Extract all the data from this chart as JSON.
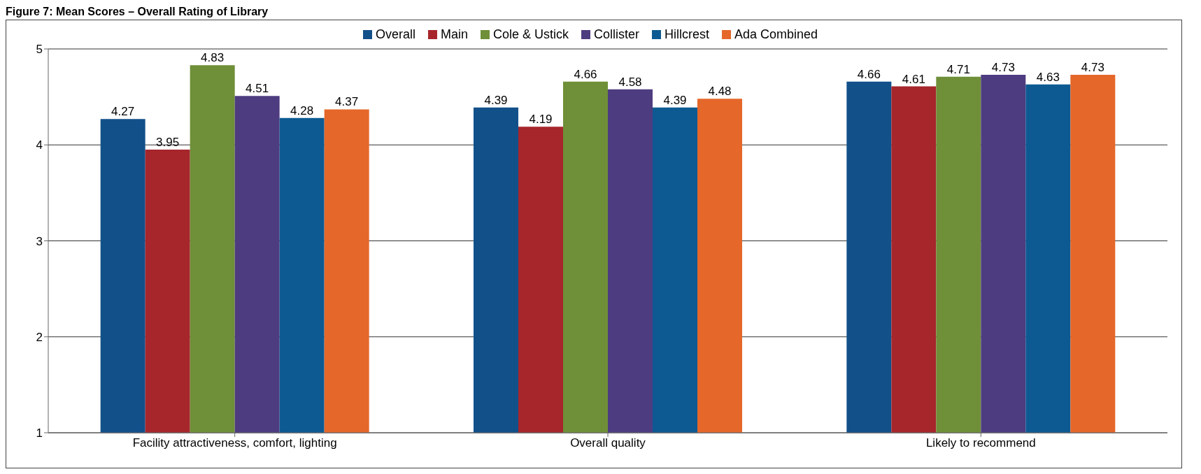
{
  "chart_data": {
    "type": "bar",
    "title": "Figure 7: Mean Scores – Overall Rating of Library",
    "categories": [
      "Facility attractiveness, comfort, lighting",
      "Overall quality",
      "Likely to recommend"
    ],
    "series": [
      {
        "name": "Overall",
        "color": "#12508a",
        "values": [
          4.27,
          4.39,
          4.66
        ]
      },
      {
        "name": "Main",
        "color": "#a6262c",
        "values": [
          3.95,
          4.19,
          4.61
        ]
      },
      {
        "name": "Cole & Ustick",
        "color": "#6f8f38",
        "values": [
          4.83,
          4.66,
          4.71
        ]
      },
      {
        "name": "Collister",
        "color": "#4e3c80",
        "values": [
          4.51,
          4.58,
          4.73
        ]
      },
      {
        "name": "Hillcrest",
        "color": "#0d5a92",
        "values": [
          4.28,
          4.39,
          4.63
        ]
      },
      {
        "name": "Ada Combined",
        "color": "#e5672a",
        "values": [
          4.37,
          4.48,
          4.73
        ]
      }
    ],
    "ylim": [
      1,
      5
    ],
    "yticks": [
      1,
      2,
      3,
      4,
      5
    ],
    "grid": "y",
    "legend": "top",
    "data_labels": true
  }
}
